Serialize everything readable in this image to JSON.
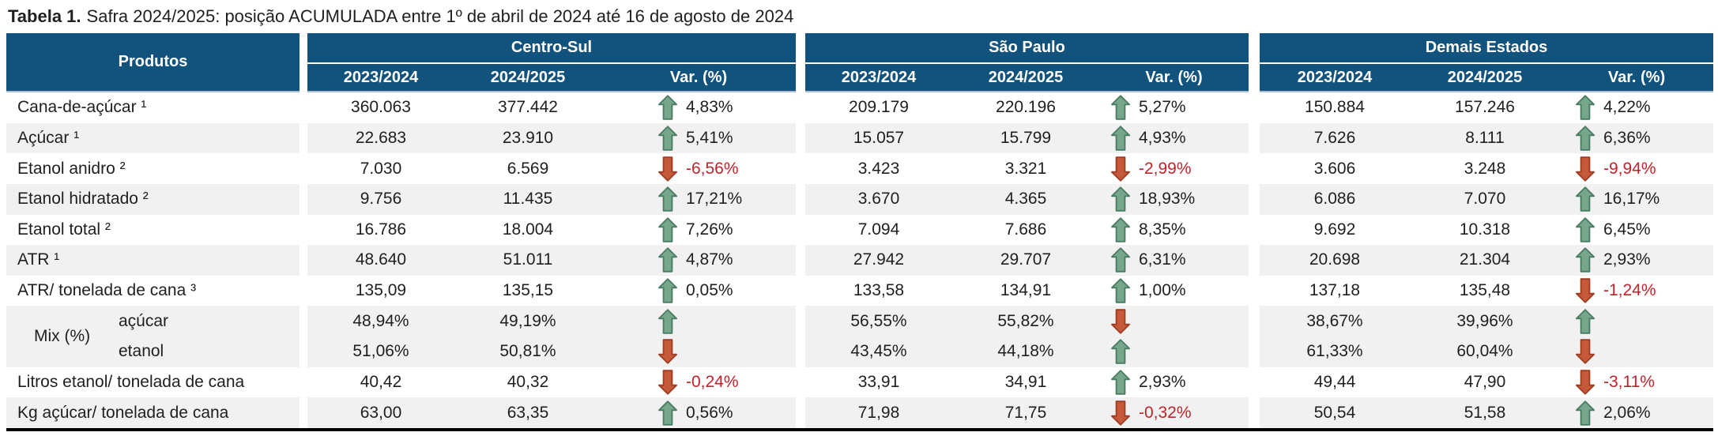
{
  "title": {
    "prefix": "Tabela 1.",
    "text": "Safra 2024/2025: posição ACUMULADA entre 1º de abril de 2024 até 16 de agosto de 2024"
  },
  "colors": {
    "header_bg": "#12537D",
    "header_edge": "#A9C0D2",
    "stripe": "#F1F1F1",
    "text": "#1F1F1F",
    "negative_text": "#C0232B",
    "up_fill": "#76A78D",
    "up_stroke": "#4A7C62",
    "down_fill": "#C7593B",
    "down_stroke": "#9F3D22"
  },
  "table": {
    "products_header": "Produtos",
    "groups": [
      {
        "name": "Centro-Sul",
        "columns": [
          "2023/2024",
          "2024/2025",
          "Var. (%)"
        ]
      },
      {
        "name": "São Paulo",
        "columns": [
          "2023/2024",
          "2024/2025",
          "Var. (%)"
        ]
      },
      {
        "name": "Demais Estados",
        "columns": [
          "2023/2024",
          "2024/2025",
          "Var. (%)"
        ]
      }
    ],
    "rows": [
      {
        "label": "Cana-de-açúcar ¹",
        "shade": false,
        "cells": [
          {
            "prev": "360.063",
            "curr": "377.442",
            "dir": "up",
            "var": "4,83%"
          },
          {
            "prev": "209.179",
            "curr": "220.196",
            "dir": "up",
            "var": "5,27%"
          },
          {
            "prev": "150.884",
            "curr": "157.246",
            "dir": "up",
            "var": "4,22%"
          }
        ]
      },
      {
        "label": "Açúcar ¹",
        "shade": true,
        "cells": [
          {
            "prev": "22.683",
            "curr": "23.910",
            "dir": "up",
            "var": "5,41%"
          },
          {
            "prev": "15.057",
            "curr": "15.799",
            "dir": "up",
            "var": "4,93%"
          },
          {
            "prev": "7.626",
            "curr": "8.111",
            "dir": "up",
            "var": "6,36%"
          }
        ]
      },
      {
        "label": "Etanol anidro ²",
        "shade": false,
        "cells": [
          {
            "prev": "7.030",
            "curr": "6.569",
            "dir": "down",
            "var": "-6,56%"
          },
          {
            "prev": "3.423",
            "curr": "3.321",
            "dir": "down",
            "var": "-2,99%"
          },
          {
            "prev": "3.606",
            "curr": "3.248",
            "dir": "down",
            "var": "-9,94%"
          }
        ]
      },
      {
        "label": "Etanol hidratado ²",
        "shade": true,
        "cells": [
          {
            "prev": "9.756",
            "curr": "11.435",
            "dir": "up",
            "var": "17,21%"
          },
          {
            "prev": "3.670",
            "curr": "4.365",
            "dir": "up",
            "var": "18,93%"
          },
          {
            "prev": "6.086",
            "curr": "7.070",
            "dir": "up",
            "var": "16,17%"
          }
        ]
      },
      {
        "label": "Etanol total ²",
        "shade": false,
        "cells": [
          {
            "prev": "16.786",
            "curr": "18.004",
            "dir": "up",
            "var": "7,26%"
          },
          {
            "prev": "7.094",
            "curr": "7.686",
            "dir": "up",
            "var": "8,35%"
          },
          {
            "prev": "9.692",
            "curr": "10.318",
            "dir": "up",
            "var": "6,45%"
          }
        ]
      },
      {
        "label": "ATR ¹",
        "shade": true,
        "cells": [
          {
            "prev": "48.640",
            "curr": "51.011",
            "dir": "up",
            "var": "4,87%"
          },
          {
            "prev": "27.942",
            "curr": "29.707",
            "dir": "up",
            "var": "6,31%"
          },
          {
            "prev": "20.698",
            "curr": "21.304",
            "dir": "up",
            "var": "2,93%"
          }
        ]
      },
      {
        "label": "ATR/ tonelada de cana ³",
        "shade": false,
        "cells": [
          {
            "prev": "135,09",
            "curr": "135,15",
            "dir": "up",
            "var": "0,05%"
          },
          {
            "prev": "133,58",
            "curr": "134,91",
            "dir": "up",
            "var": "1,00%"
          },
          {
            "prev": "137,18",
            "curr": "135,48",
            "dir": "down",
            "var": "-1,24%"
          }
        ]
      },
      {
        "type": "mix",
        "label": "Mix (%)",
        "shade": true,
        "lines": [
          {
            "sublabel": "açúcar",
            "cells": [
              {
                "prev": "48,94%",
                "curr": "49,19%",
                "dir": "up",
                "var": ""
              },
              {
                "prev": "56,55%",
                "curr": "55,82%",
                "dir": "down",
                "var": ""
              },
              {
                "prev": "38,67%",
                "curr": "39,96%",
                "dir": "up",
                "var": ""
              }
            ]
          },
          {
            "sublabel": "etanol",
            "cells": [
              {
                "prev": "51,06%",
                "curr": "50,81%",
                "dir": "down",
                "var": ""
              },
              {
                "prev": "43,45%",
                "curr": "44,18%",
                "dir": "up",
                "var": ""
              },
              {
                "prev": "61,33%",
                "curr": "60,04%",
                "dir": "down",
                "var": ""
              }
            ]
          }
        ]
      },
      {
        "label": "Litros etanol/ tonelada de cana",
        "shade": false,
        "cells": [
          {
            "prev": "40,42",
            "curr": "40,32",
            "dir": "down",
            "var": "-0,24%"
          },
          {
            "prev": "33,91",
            "curr": "34,91",
            "dir": "up",
            "var": "2,93%"
          },
          {
            "prev": "49,44",
            "curr": "47,90",
            "dir": "down",
            "var": "-3,11%"
          }
        ]
      },
      {
        "label": "Kg açúcar/ tonelada de cana",
        "shade": true,
        "cells": [
          {
            "prev": "63,00",
            "curr": "63,35",
            "dir": "up",
            "var": "0,56%"
          },
          {
            "prev": "71,98",
            "curr": "71,75",
            "dir": "down",
            "var": "-0,32%"
          },
          {
            "prev": "50,54",
            "curr": "51,58",
            "dir": "up",
            "var": "2,06%"
          }
        ]
      }
    ]
  }
}
